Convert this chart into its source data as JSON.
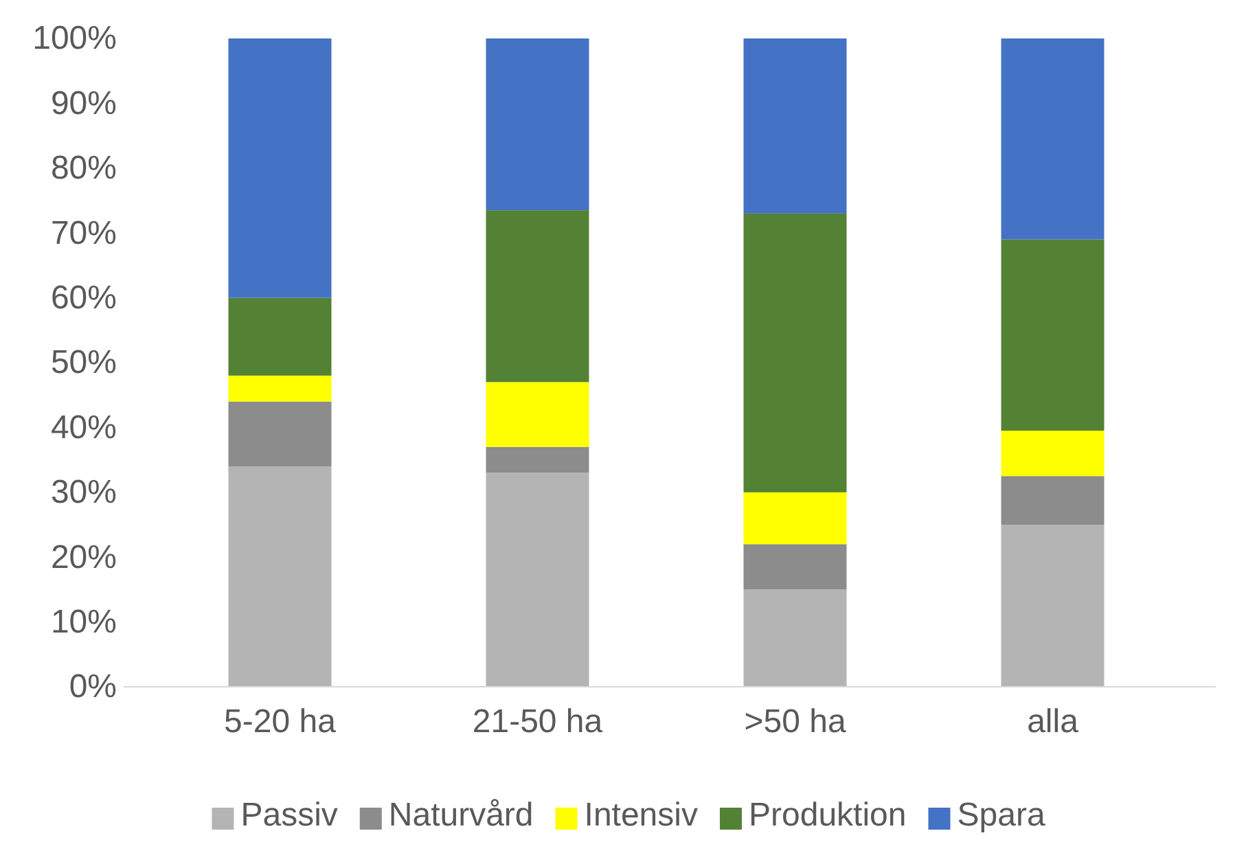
{
  "chart_data": {
    "type": "bar",
    "stacked": true,
    "categories": [
      "5-20 ha",
      "21-50 ha",
      ">50 ha",
      "alla"
    ],
    "series": [
      {
        "name": "Passiv",
        "color": "#b4b4b4",
        "values": [
          34,
          33,
          15,
          25
        ]
      },
      {
        "name": "Naturvård",
        "color": "#8c8c8c",
        "values": [
          10,
          4,
          7,
          7.5
        ]
      },
      {
        "name": "Intensiv",
        "color": "#ffff00",
        "values": [
          4,
          10,
          8,
          7
        ]
      },
      {
        "name": "Produktion",
        "color": "#548235",
        "values": [
          12,
          26.5,
          43,
          29.5
        ]
      },
      {
        "name": "Spara",
        "color": "#4472c4",
        "values": [
          40,
          26.5,
          27,
          31
        ]
      }
    ],
    "ylim": [
      0,
      100
    ],
    "yticks": [
      {
        "value": 0,
        "label": "0%"
      },
      {
        "value": 10,
        "label": "10%"
      },
      {
        "value": 20,
        "label": "20%"
      },
      {
        "value": 30,
        "label": "30%"
      },
      {
        "value": 40,
        "label": "40%"
      },
      {
        "value": 50,
        "label": "50%"
      },
      {
        "value": 60,
        "label": "60%"
      },
      {
        "value": 70,
        "label": "70%"
      },
      {
        "value": 80,
        "label": "80%"
      },
      {
        "value": 90,
        "label": "90%"
      },
      {
        "value": 100,
        "label": "100%"
      }
    ],
    "grid": false,
    "legend": "bottom"
  }
}
